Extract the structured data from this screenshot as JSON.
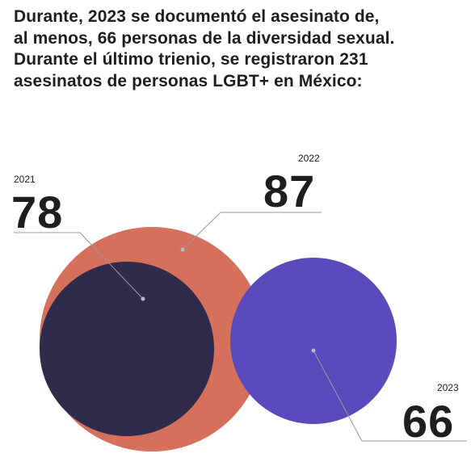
{
  "headline": [
    "Durante, 2023 se documentó el asesinato de,",
    "al menos, 66 personas de la diversidad sexual.",
    "Durante el último trienio, se registraron 231",
    "asesinatos de personas LGBT+ en México:"
  ],
  "chart_data": {
    "type": "bubble",
    "title": "",
    "series": [
      {
        "category": "2021",
        "value": 78,
        "color": "#2f2b4a"
      },
      {
        "category": "2022",
        "value": 87,
        "color": "#d4705b"
      },
      {
        "category": "2023",
        "value": 66,
        "color": "#5a4bbd"
      }
    ],
    "grid": false,
    "legend": "none"
  }
}
